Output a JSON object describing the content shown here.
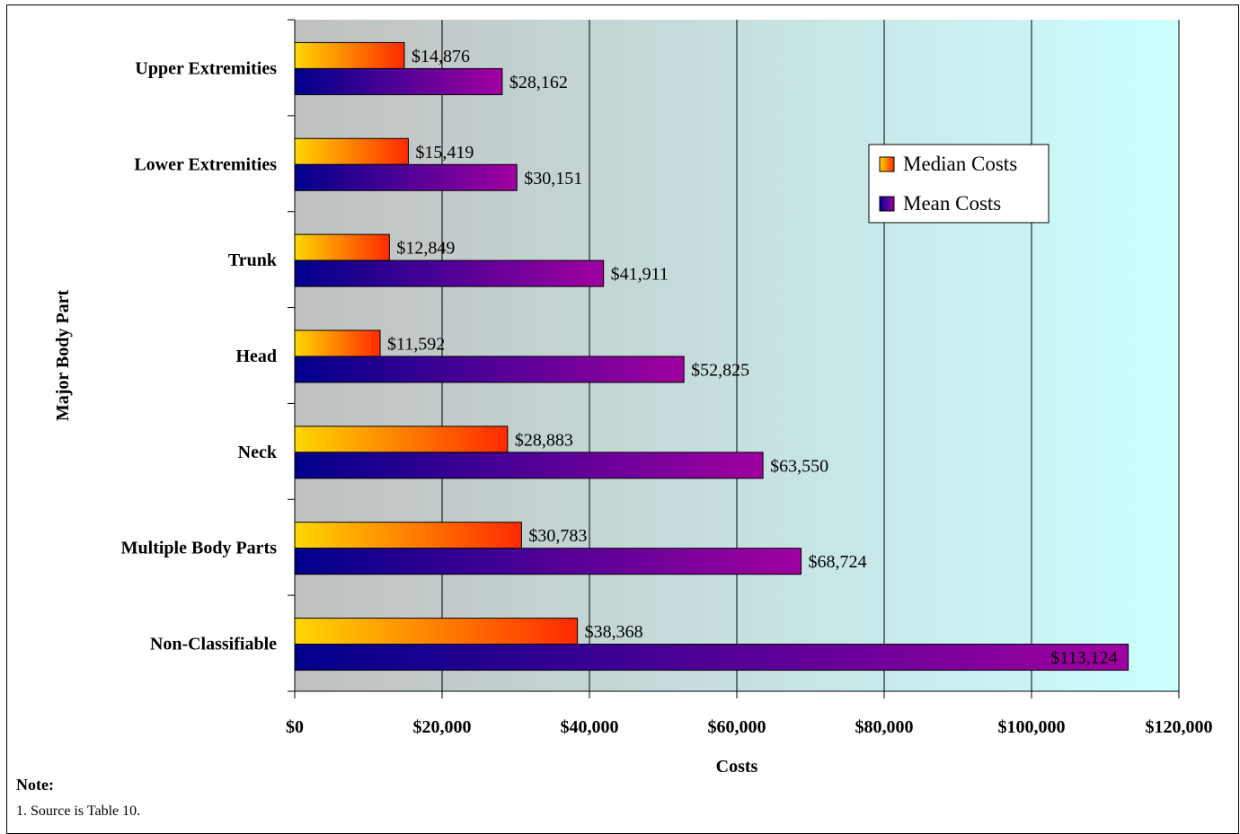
{
  "chart_data": {
    "type": "bar",
    "orientation": "horizontal",
    "categories": [
      "Upper Extremities",
      "Lower Extremities",
      "Trunk",
      "Head",
      "Neck",
      "Multiple Body Parts",
      "Non-Classifiable"
    ],
    "series": [
      {
        "name": "Median Costs",
        "values": [
          14876,
          15419,
          12849,
          11592,
          28883,
          30783,
          38368
        ],
        "labels": [
          "$14,876",
          "$15,419",
          "$12,849",
          "$11,592",
          "$28,883",
          "$30,783",
          "$38,368"
        ]
      },
      {
        "name": "Mean Costs",
        "values": [
          28162,
          30151,
          41911,
          52825,
          63550,
          68724,
          113124
        ],
        "labels": [
          "$28,162",
          "$30,151",
          "$41,911",
          "$52,825",
          "$63,550",
          "$68,724",
          "$113,124"
        ]
      }
    ],
    "xlabel": "Costs",
    "ylabel": "Major Body Part",
    "xlim": [
      0,
      120000
    ],
    "xticks": [
      "$0",
      "$20,000",
      "$40,000",
      "$60,000",
      "$80,000",
      "$100,000",
      "$120,000"
    ],
    "grid": "vertical",
    "legend_position": "upper-right",
    "colors": {
      "median_start": "#FFD700",
      "median_end": "#FF2A00",
      "mean_start": "#00008B",
      "mean_end": "#A000A0",
      "plot_bg_start": "#c0c0c0",
      "plot_bg_end": "#ccffff"
    }
  },
  "note": {
    "heading": "Note:",
    "text": "1. Source is Table 10."
  }
}
